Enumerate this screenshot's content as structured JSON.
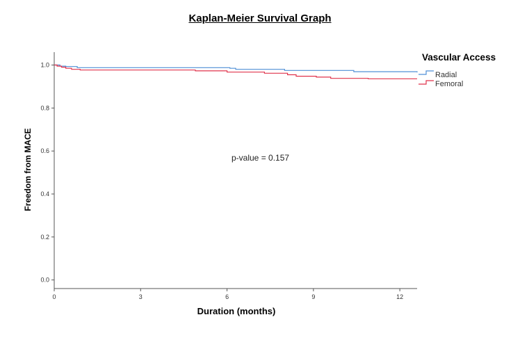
{
  "chart_data": {
    "type": "line",
    "title": "Kaplan-Meier Survival Graph",
    "xlabel": "Duration (months)",
    "ylabel": "Freedom from MACE",
    "xlim": [
      0,
      12.6
    ],
    "ylim": [
      -0.04,
      1.06
    ],
    "x_ticks": [
      0,
      3,
      6,
      9,
      12
    ],
    "x_tick_labels": [
      "0",
      "3",
      "6",
      "9",
      "12"
    ],
    "y_ticks": [
      0.0,
      0.2,
      0.4,
      0.6,
      0.8,
      1.0
    ],
    "y_tick_labels": [
      "0.0",
      "0.2",
      "0.4",
      "0.6",
      "0.8",
      "1.0"
    ],
    "legend_title": "Vascular Access",
    "legend_position": "top-right",
    "annotation": "p-value = 0.157",
    "grid": false,
    "series": [
      {
        "name": "Radial",
        "color": "#4f8fd6",
        "step": [
          [
            0,
            1.0
          ],
          [
            0.2,
            0.995
          ],
          [
            0.4,
            0.993
          ],
          [
            0.8,
            0.988
          ],
          [
            6.1,
            0.985
          ],
          [
            6.3,
            0.98
          ],
          [
            8.0,
            0.975
          ],
          [
            10.4,
            0.969
          ],
          [
            12.6,
            0.966
          ]
        ]
      },
      {
        "name": "Femoral",
        "color": "#e0324b",
        "step": [
          [
            0,
            1.0
          ],
          [
            0.1,
            0.995
          ],
          [
            0.25,
            0.99
          ],
          [
            0.4,
            0.985
          ],
          [
            0.6,
            0.98
          ],
          [
            0.9,
            0.977
          ],
          [
            4.9,
            0.973
          ],
          [
            6.0,
            0.967
          ],
          [
            7.3,
            0.962
          ],
          [
            8.1,
            0.955
          ],
          [
            8.4,
            0.948
          ],
          [
            9.1,
            0.944
          ],
          [
            9.6,
            0.938
          ],
          [
            10.9,
            0.936
          ],
          [
            12.6,
            0.936
          ]
        ]
      }
    ]
  }
}
